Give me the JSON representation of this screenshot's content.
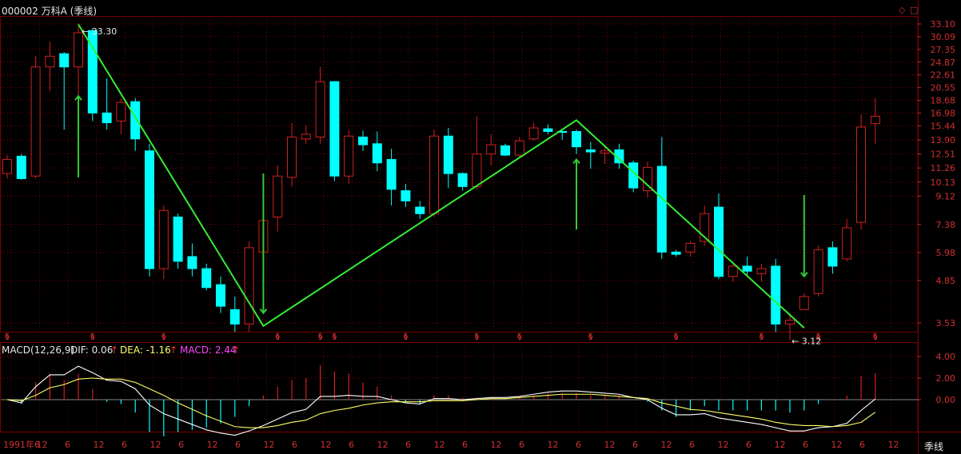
{
  "title": "000002 万科A (季线)",
  "corner_icons": [
    "diamond-icon",
    "square-icon"
  ],
  "timeframe_label": "季线",
  "colors": {
    "up": "#d02020",
    "down": "#00ffff",
    "trend": "#33ee33",
    "arrow": "#33cc33",
    "grid": "#7a0000",
    "axis": "#d23030",
    "dif": "#ffffff",
    "dea": "#ffff66",
    "macd_label": "#ff44ff"
  },
  "macd_header": {
    "name": "MACD(12,26,9)",
    "dif_label": "DIF: 0.06",
    "dea_label": "DEA: -1.16",
    "macd_label": "MACD: 2.44",
    "up_arrow": "↑"
  },
  "annotations": {
    "high": "33.30",
    "low": "3.12"
  },
  "chart_data": [
    {
      "type": "candlestick",
      "title": "000002 万科A (季线)",
      "y_axis_labels": [
        "33.10",
        "30.09",
        "27.35",
        "24.87",
        "22.61",
        "20.55",
        "18.68",
        "16.98",
        "15.44",
        "13.90",
        "12.51",
        "11.26",
        "10.13",
        "9.12",
        "7.38",
        "5.98",
        "4.85",
        "3.53"
      ],
      "x_axis_labels": [
        "1991年6",
        "12",
        "6",
        "12",
        "6",
        "12",
        "6",
        "12",
        "6",
        "12",
        "6",
        "12",
        "6",
        "12",
        "6",
        "12",
        "6",
        "12",
        "6",
        "12",
        "6",
        "12",
        "6",
        "12",
        "6",
        "12",
        "6",
        "12",
        "6",
        "12",
        "6",
        "12"
      ],
      "candles": [
        {
          "o": 10.8,
          "h": 12.4,
          "l": 10.4,
          "c": 12.0
        },
        {
          "o": 12.3,
          "h": 12.5,
          "l": 10.3,
          "c": 10.4
        },
        {
          "o": 10.6,
          "h": 26.0,
          "l": 10.4,
          "c": 24.0
        },
        {
          "o": 24.0,
          "h": 29.0,
          "l": 20.0,
          "c": 26.0
        },
        {
          "o": 26.5,
          "h": 26.8,
          "l": 15.0,
          "c": 24.0
        },
        {
          "o": 24.0,
          "h": 33.3,
          "l": 15.0,
          "c": 31.0
        },
        {
          "o": 31.5,
          "h": 32.0,
          "l": 16.0,
          "c": 17.0
        },
        {
          "o": 17.0,
          "h": 22.0,
          "l": 15.0,
          "c": 15.8
        },
        {
          "o": 16.0,
          "h": 19.0,
          "l": 14.5,
          "c": 18.4
        },
        {
          "o": 18.5,
          "h": 19.0,
          "l": 12.8,
          "c": 14.0
        },
        {
          "o": 12.8,
          "h": 13.5,
          "l": 5.0,
          "c": 5.3
        },
        {
          "o": 5.3,
          "h": 8.5,
          "l": 4.9,
          "c": 8.2
        },
        {
          "o": 7.8,
          "h": 8.0,
          "l": 5.3,
          "c": 5.6
        },
        {
          "o": 5.8,
          "h": 6.4,
          "l": 5.0,
          "c": 5.3
        },
        {
          "o": 5.3,
          "h": 5.5,
          "l": 4.5,
          "c": 4.6
        },
        {
          "o": 4.7,
          "h": 5.0,
          "l": 3.8,
          "c": 4.0
        },
        {
          "o": 3.9,
          "h": 4.3,
          "l": 3.3,
          "c": 3.5
        },
        {
          "o": 3.5,
          "h": 6.5,
          "l": 3.3,
          "c": 6.2
        },
        {
          "o": 6.0,
          "h": 8.0,
          "l": 5.5,
          "c": 7.6
        },
        {
          "o": 7.8,
          "h": 11.5,
          "l": 7.0,
          "c": 10.6
        },
        {
          "o": 10.5,
          "h": 15.8,
          "l": 9.8,
          "c": 14.2
        },
        {
          "o": 14.0,
          "h": 15.5,
          "l": 13.5,
          "c": 14.5
        },
        {
          "o": 14.2,
          "h": 24.0,
          "l": 13.5,
          "c": 21.5
        },
        {
          "o": 21.5,
          "h": 21.6,
          "l": 10.2,
          "c": 10.6
        },
        {
          "o": 10.6,
          "h": 15.0,
          "l": 10.0,
          "c": 14.3
        },
        {
          "o": 14.2,
          "h": 14.9,
          "l": 12.8,
          "c": 13.4
        },
        {
          "o": 13.5,
          "h": 14.8,
          "l": 11.0,
          "c": 11.7
        },
        {
          "o": 12.0,
          "h": 13.0,
          "l": 8.5,
          "c": 9.6
        },
        {
          "o": 9.5,
          "h": 10.0,
          "l": 8.4,
          "c": 8.8
        },
        {
          "o": 8.4,
          "h": 8.8,
          "l": 7.7,
          "c": 8.0
        },
        {
          "o": 8.0,
          "h": 15.0,
          "l": 7.8,
          "c": 14.3
        },
        {
          "o": 14.3,
          "h": 15.2,
          "l": 9.7,
          "c": 10.8
        },
        {
          "o": 10.8,
          "h": 10.9,
          "l": 9.5,
          "c": 9.8
        },
        {
          "o": 9.8,
          "h": 16.6,
          "l": 9.6,
          "c": 12.5
        },
        {
          "o": 12.5,
          "h": 14.5,
          "l": 11.5,
          "c": 13.4
        },
        {
          "o": 13.3,
          "h": 13.5,
          "l": 12.3,
          "c": 12.4
        },
        {
          "o": 12.4,
          "h": 14.2,
          "l": 12.2,
          "c": 13.8
        },
        {
          "o": 14.0,
          "h": 15.8,
          "l": 13.8,
          "c": 15.2
        },
        {
          "o": 15.1,
          "h": 15.6,
          "l": 14.5,
          "c": 14.8
        },
        {
          "o": 14.8,
          "h": 14.9,
          "l": 13.9,
          "c": 14.7
        },
        {
          "o": 14.8,
          "h": 15.0,
          "l": 12.5,
          "c": 13.2
        },
        {
          "o": 12.9,
          "h": 13.7,
          "l": 11.2,
          "c": 12.7
        },
        {
          "o": 12.6,
          "h": 13.2,
          "l": 11.6,
          "c": 12.8
        },
        {
          "o": 12.9,
          "h": 13.5,
          "l": 11.2,
          "c": 11.7
        },
        {
          "o": 11.7,
          "h": 11.9,
          "l": 9.4,
          "c": 9.7
        },
        {
          "o": 9.5,
          "h": 11.8,
          "l": 9.0,
          "c": 11.3
        },
        {
          "o": 11.4,
          "h": 14.2,
          "l": 5.7,
          "c": 6.0
        },
        {
          "o": 6.0,
          "h": 6.1,
          "l": 5.8,
          "c": 5.9
        },
        {
          "o": 6.0,
          "h": 6.5,
          "l": 5.8,
          "c": 6.4
        },
        {
          "o": 6.5,
          "h": 8.5,
          "l": 6.3,
          "c": 8.0
        },
        {
          "o": 8.4,
          "h": 9.3,
          "l": 4.9,
          "c": 5.0
        },
        {
          "o": 5.0,
          "h": 5.6,
          "l": 4.8,
          "c": 5.4
        },
        {
          "o": 5.4,
          "h": 5.8,
          "l": 5.0,
          "c": 5.2
        },
        {
          "o": 5.1,
          "h": 5.5,
          "l": 4.8,
          "c": 5.3
        },
        {
          "o": 5.4,
          "h": 5.7,
          "l": 3.3,
          "c": 3.5
        },
        {
          "o": 3.5,
          "h": 3.8,
          "l": 3.1,
          "c": 3.6
        },
        {
          "o": 3.9,
          "h": 4.4,
          "l": 3.9,
          "c": 4.3
        },
        {
          "o": 4.4,
          "h": 6.3,
          "l": 4.3,
          "c": 6.1
        },
        {
          "o": 6.2,
          "h": 6.5,
          "l": 5.1,
          "c": 5.4
        },
        {
          "o": 5.7,
          "h": 7.7,
          "l": 5.6,
          "c": 7.2
        },
        {
          "o": 7.5,
          "h": 16.8,
          "l": 7.1,
          "c": 15.3
        },
        {
          "o": 15.7,
          "h": 19.0,
          "l": 13.5,
          "c": 16.6
        }
      ],
      "trend_line": [
        [
          5,
          33.0
        ],
        [
          18,
          3.45
        ],
        [
          40,
          16.1
        ],
        [
          56,
          3.4
        ]
      ],
      "arrows": [
        {
          "i": 5,
          "dir": "up",
          "y0": 10.5,
          "y1": 19.3
        },
        {
          "i": 18,
          "dir": "down",
          "y0": 10.8,
          "y1": 3.8
        },
        {
          "i": 40,
          "dir": "up",
          "y0": 7.1,
          "y1": 12.0
        },
        {
          "i": 56,
          "dir": "down",
          "y0": 9.2,
          "y1": 5.0
        }
      ],
      "event_marks": [
        0,
        6,
        11,
        19,
        22,
        23,
        28,
        33,
        36,
        41,
        47,
        53,
        57,
        61
      ]
    },
    {
      "type": "line",
      "title": "MACD(12,26,9)",
      "y_axis_labels": [
        "4.00",
        "2.00",
        "0.00"
      ],
      "series": [
        {
          "name": "DIF",
          "values": [
            0.0,
            -0.3,
            1.2,
            2.3,
            2.3,
            3.1,
            2.5,
            1.8,
            1.7,
            1.0,
            -0.5,
            -1.3,
            -1.8,
            -2.3,
            -2.8,
            -3.1,
            -3.3,
            -2.9,
            -2.4,
            -1.8,
            -1.2,
            -0.9,
            0.3,
            0.3,
            0.4,
            0.3,
            0.3,
            0.0,
            -0.3,
            -0.4,
            0.1,
            0.1,
            0.0,
            0.1,
            0.2,
            0.2,
            0.3,
            0.5,
            0.7,
            0.8,
            0.8,
            0.7,
            0.6,
            0.5,
            0.2,
            0.0,
            -0.8,
            -1.4,
            -1.4,
            -1.3,
            -1.7,
            -1.9,
            -2.1,
            -2.3,
            -2.6,
            -2.9,
            -2.9,
            -2.6,
            -2.5,
            -2.2,
            -1.0,
            0.06
          ]
        },
        {
          "name": "DEA",
          "values": [
            0.0,
            -0.1,
            0.4,
            1.1,
            1.4,
            1.9,
            2.0,
            1.9,
            1.9,
            1.6,
            1.0,
            0.4,
            -0.3,
            -0.9,
            -1.5,
            -2.0,
            -2.5,
            -2.6,
            -2.6,
            -2.4,
            -2.1,
            -1.9,
            -1.3,
            -1.0,
            -0.8,
            -0.5,
            -0.3,
            -0.2,
            -0.2,
            -0.2,
            -0.1,
            -0.1,
            -0.1,
            0.0,
            0.1,
            0.1,
            0.2,
            0.3,
            0.4,
            0.5,
            0.5,
            0.5,
            0.4,
            0.3,
            0.2,
            0.1,
            -0.3,
            -0.6,
            -0.9,
            -1.0,
            -1.2,
            -1.4,
            -1.6,
            -1.8,
            -2.1,
            -2.3,
            -2.4,
            -2.4,
            -2.5,
            -2.4,
            -2.1,
            -1.16
          ]
        },
        {
          "name": "MACD",
          "values": [
            0.0,
            -0.4,
            1.6,
            2.4,
            1.8,
            2.4,
            1.0,
            -0.2,
            -0.4,
            -1.2,
            -3.0,
            -3.4,
            -3.0,
            -2.8,
            -2.6,
            -2.2,
            -1.6,
            -0.6,
            0.4,
            1.2,
            1.8,
            2.0,
            3.2,
            2.6,
            2.4,
            1.6,
            1.2,
            0.4,
            -0.2,
            -0.4,
            0.4,
            0.4,
            0.2,
            0.2,
            0.2,
            0.2,
            0.2,
            0.4,
            0.6,
            0.6,
            0.6,
            0.4,
            0.4,
            0.4,
            0.0,
            -0.2,
            -1.0,
            -1.6,
            -1.0,
            -0.6,
            -1.0,
            -1.0,
            -1.0,
            -1.0,
            -1.0,
            -1.2,
            -1.0,
            -0.4,
            0.0,
            0.4,
            2.2,
            2.44
          ]
        }
      ]
    }
  ]
}
